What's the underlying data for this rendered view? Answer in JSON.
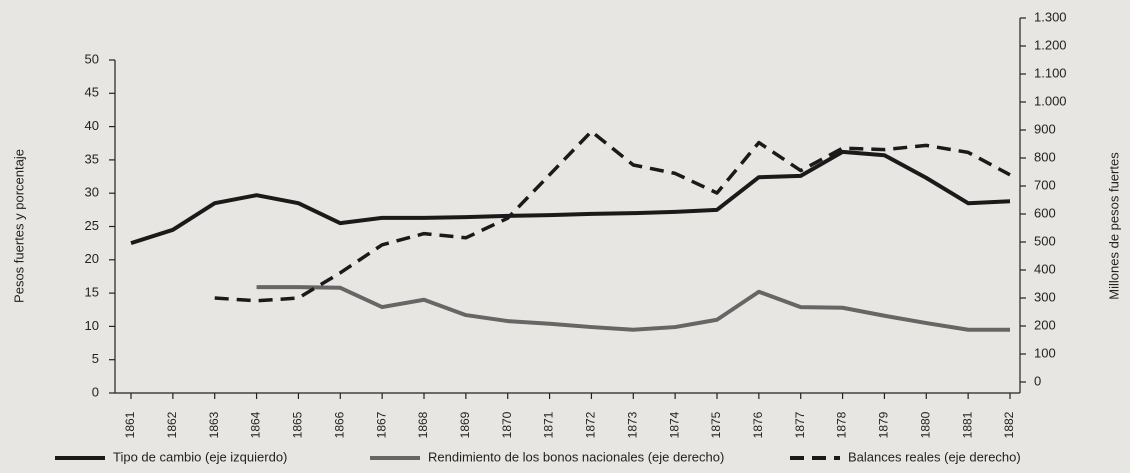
{
  "chart_data": {
    "type": "line",
    "y_label": "Pesos fuertes y porcentaje",
    "y2_label": "Millones de pesos fuertes",
    "categories": [
      "1861",
      "1862",
      "1863",
      "1864",
      "1865",
      "1866",
      "1867",
      "1868",
      "1869",
      "1870",
      "1871",
      "1872",
      "1873",
      "1874",
      "1875",
      "1876",
      "1877",
      "1878",
      "1879",
      "1880",
      "1881",
      "1882"
    ],
    "ylim": [
      0,
      50
    ],
    "yticks": [
      0,
      5,
      10,
      15,
      20,
      25,
      30,
      35,
      40,
      45,
      50
    ],
    "y2lim": [
      0,
      1300
    ],
    "y2ticks": [
      0,
      100,
      200,
      300,
      400,
      500,
      600,
      700,
      800,
      900,
      {
        "value": 1000,
        "label": "1.000"
      },
      {
        "value": 1100,
        "label": "1.100"
      },
      {
        "value": 1200,
        "label": "1.200"
      },
      {
        "value": 1300,
        "label": "1.300"
      }
    ],
    "series": [
      {
        "name": "Tipo de cambio (eje izquierdo)",
        "color": "#1a1a1a",
        "dashed": false,
        "values": [
          22.5,
          24.5,
          28.5,
          29.7,
          28.5,
          25.5,
          26.3,
          26.3,
          26.4,
          26.6,
          26.7,
          26.9,
          27,
          27.2,
          27.5,
          32.4,
          32.6,
          36.2,
          35.7,
          32.3,
          28.5,
          28.8
        ]
      },
      {
        "name": "Rendimiento de los bonos nacionales (eje derecho)",
        "color": "#666666",
        "dashed": false,
        "values": [
          null,
          null,
          null,
          15.9,
          15.9,
          15.8,
          12.9,
          14,
          11.7,
          10.8,
          10.4,
          9.9,
          9.5,
          9.9,
          11,
          15.2,
          12.9,
          12.8,
          11.6,
          10.5,
          9.5,
          9.5
        ]
      },
      {
        "name": "Balances reales (eje derecho)",
        "color": "#1a1a1a",
        "dashed": true,
        "axis": "y2",
        "values": [
          null,
          null,
          300,
          290,
          300,
          390,
          490,
          530,
          515,
          585,
          740,
          895,
          775,
          745,
          675,
          855,
          755,
          835,
          830,
          845,
          820,
          740
        ]
      }
    ]
  }
}
